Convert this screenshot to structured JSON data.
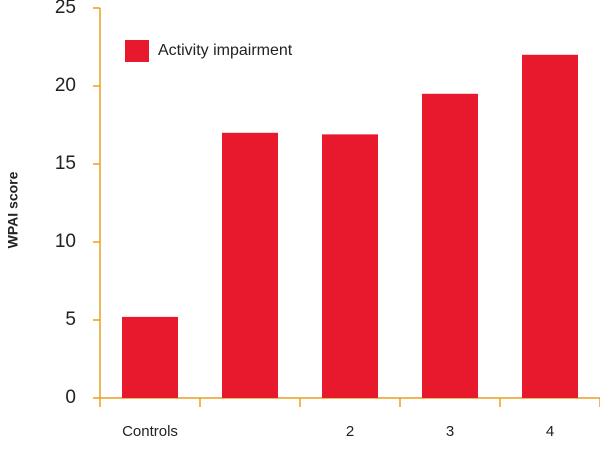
{
  "chart_data": {
    "type": "bar",
    "ylabel": "WPAI score",
    "categories": [
      "Controls",
      null,
      "2",
      "3",
      "4"
    ],
    "series": [
      {
        "name": "Activity impairment",
        "color": "#e8192c",
        "values": [
          5.2,
          17.0,
          16.9,
          19.5,
          22.0
        ]
      }
    ],
    "ylim": [
      0,
      25
    ],
    "yticks": [
      0,
      5,
      10,
      15,
      20,
      25
    ],
    "legend": "upper left"
  }
}
